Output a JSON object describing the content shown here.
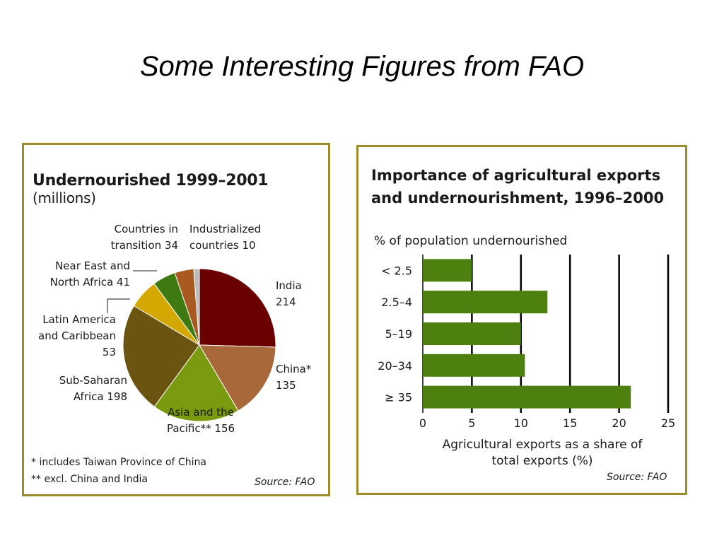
{
  "slide": {
    "title": "Some Interesting Figures from FAO"
  },
  "left_panel": {
    "title": "Undernourished 1999–2001",
    "unit": "(millions)",
    "notes": [
      "* includes Taiwan Province of China",
      "** excl. China and India"
    ],
    "source": "Source: FAO"
  },
  "right_panel": {
    "title_line1": "Importance of agricultural exports",
    "title_line2": "and undernourishment, 1996–2000",
    "source": "Source: FAO"
  },
  "chart_data": [
    {
      "type": "pie",
      "title": "Undernourished 1999–2001 (millions)",
      "slices": [
        {
          "label_lines": [
            "India",
            "214"
          ],
          "value": 214,
          "color": "#6b0000"
        },
        {
          "label_lines": [
            "China*",
            "135"
          ],
          "value": 135,
          "color": "#a8683a"
        },
        {
          "label_lines": [
            "Asia and the",
            "Pacific** 156"
          ],
          "value": 156,
          "color": "#7a9a10"
        },
        {
          "label_lines": [
            "Sub-Saharan",
            "Africa 198"
          ],
          "value": 198,
          "color": "#6b5410"
        },
        {
          "label_lines": [
            "Latin America",
            "and Caribbean",
            "53"
          ],
          "value": 53,
          "color": "#d4a800"
        },
        {
          "label_lines": [
            "Near East and",
            "North Africa 41"
          ],
          "value": 41,
          "color": "#3f7a10"
        },
        {
          "label_lines": [
            "Countries in",
            "transition 34"
          ],
          "value": 34,
          "color": "#a85a20"
        },
        {
          "label_lines": [
            "Industrialized",
            "countries 10"
          ],
          "value": 10,
          "color": "#bbbbbb"
        }
      ],
      "notes": [
        "* includes Taiwan Province of China",
        "** excl. China and India"
      ],
      "source": "Source: FAO"
    },
    {
      "type": "bar",
      "orientation": "horizontal",
      "title": "Importance of agricultural exports and undernourishment, 1996–2000",
      "ylabel": "% of population undernourished",
      "xlabel_lines": [
        "Agricultural exports as a share of",
        "total exports (%)"
      ],
      "categories": [
        "< 2.5",
        "2.5–4",
        "5–19",
        "20–34",
        "≥ 35"
      ],
      "values": [
        5,
        12.7,
        10,
        10.4,
        21.2
      ],
      "xlim": [
        0,
        25
      ],
      "xticks": [
        "0",
        "5",
        "10",
        "15",
        "20",
        "25"
      ],
      "grid": true,
      "bar_color": "#4e8010",
      "source": "Source: FAO"
    }
  ]
}
